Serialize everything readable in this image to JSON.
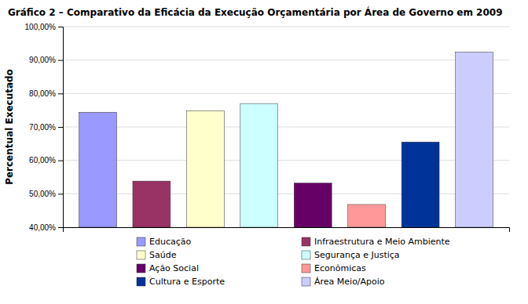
{
  "chart_data": {
    "type": "bar",
    "title": "Gráfico 2 – Comparativo da Eficácia da Execução Orçamentária por Área de Governo em 2009",
    "ylabel": "Percentual Executado",
    "categories": [
      "Educação",
      "Infraestrutura e Meio Ambiente",
      "Saúde",
      "Segurança e Justiça",
      "Ação Social",
      "Econômicas",
      "Cultura e Esporte",
      "Área Meio/Apoio"
    ],
    "values": [
      0.744,
      0.538,
      0.748,
      0.77,
      0.532,
      0.468,
      0.655,
      0.924
    ],
    "colors": [
      "#9999FF",
      "#993366",
      "#FFFFCC",
      "#CCFFFF",
      "#660066",
      "#FF9999",
      "#003399",
      "#CCCCFF"
    ],
    "ylim": [
      0.4,
      1.0
    ],
    "yticks": [
      {
        "value": 0.4,
        "label": "40,00%"
      },
      {
        "value": 0.5,
        "label": "50,00%"
      },
      {
        "value": 0.6,
        "label": "60,00%"
      },
      {
        "value": 0.7,
        "label": "70,00%"
      },
      {
        "value": 0.8,
        "label": "80,00%"
      },
      {
        "value": 0.9,
        "label": "90,00%"
      },
      {
        "value": 1.0,
        "label": "100,00%"
      }
    ],
    "grid": true,
    "legend": "bottom",
    "tick_labels": "y"
  }
}
